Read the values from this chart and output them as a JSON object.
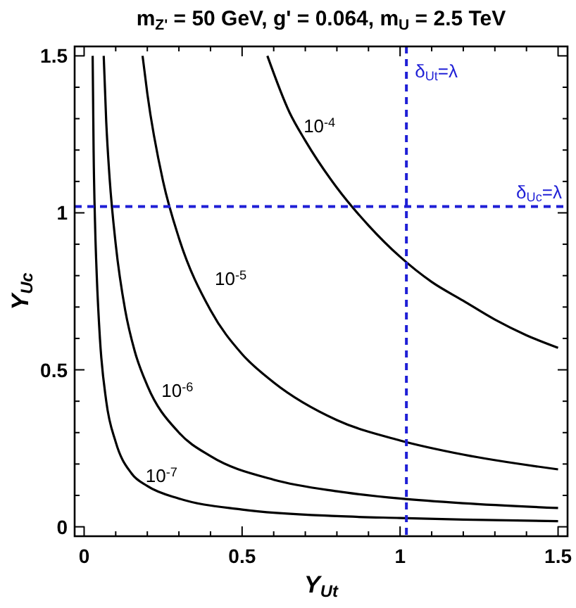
{
  "chart_data": {
    "type": "line",
    "title": "m$_{Z'}$ = 50 GeV, g' = 0.064,  m$_{U}$ = 2.5 TeV",
    "xlabel": "Y$_{Ut}$",
    "ylabel": "Y$_{Uc}$",
    "xlim": [
      -0.03,
      1.53
    ],
    "ylim": [
      -0.03,
      1.53
    ],
    "xticks": [
      0,
      {
        "value": 0.1,
        "label": null
      },
      {
        "value": 0.2,
        "label": null
      },
      {
        "value": 0.3,
        "label": null
      },
      {
        "value": 0.4,
        "label": null
      },
      0.5,
      {
        "value": 0.6,
        "label": null
      },
      {
        "value": 0.7,
        "label": null
      },
      {
        "value": 0.8,
        "label": null
      },
      {
        "value": 0.9,
        "label": null
      },
      1,
      {
        "value": 1.1,
        "label": null
      },
      {
        "value": 1.2,
        "label": null
      },
      {
        "value": 1.3,
        "label": null
      },
      {
        "value": 1.4,
        "label": null
      },
      1.5
    ],
    "yticks": [
      0,
      {
        "value": 0.1,
        "label": null
      },
      {
        "value": 0.2,
        "label": null
      },
      {
        "value": 0.3,
        "label": null
      },
      {
        "value": 0.4,
        "label": null
      },
      0.5,
      {
        "value": 0.6,
        "label": null
      },
      {
        "value": 0.7,
        "label": null
      },
      {
        "value": 0.8,
        "label": null
      },
      {
        "value": 0.9,
        "label": null
      },
      1,
      {
        "value": 1.1,
        "label": null
      },
      {
        "value": 1.2,
        "label": null
      },
      {
        "value": 1.3,
        "label": null
      },
      {
        "value": 1.4,
        "label": null
      },
      1.5
    ],
    "line_style": "solid",
    "series": [
      {
        "name": "10$^{-4}$",
        "color": "#000000",
        "x": [
          0.58,
          0.65,
          0.7,
          0.8,
          0.9,
          1.0,
          1.1,
          1.2,
          1.3,
          1.4,
          1.5
        ],
        "values": [
          1.5,
          1.32,
          1.23,
          1.08,
          0.96,
          0.86,
          0.78,
          0.72,
          0.66,
          0.61,
          0.57
        ]
      },
      {
        "name": "10$^{-5}$",
        "color": "#000000",
        "x": [
          0.185,
          0.2,
          0.25,
          0.3,
          0.4,
          0.5,
          0.6,
          0.8,
          1.0,
          1.2,
          1.5
        ],
        "values": [
          1.5,
          1.38,
          1.1,
          0.92,
          0.69,
          0.55,
          0.46,
          0.34,
          0.275,
          0.23,
          0.183
        ]
      },
      {
        "name": "10$^{-6}$",
        "color": "#000000",
        "x": [
          0.062,
          0.07,
          0.08,
          0.1,
          0.13,
          0.16,
          0.2,
          0.3,
          0.4,
          0.6,
          0.8,
          1.0,
          1.2,
          1.5
        ],
        "values": [
          1.5,
          1.29,
          1.12,
          0.9,
          0.69,
          0.56,
          0.45,
          0.3,
          0.225,
          0.15,
          0.113,
          0.09,
          0.075,
          0.06
        ]
      },
      {
        "name": "10$^{-7}$",
        "color": "#000000",
        "x": [
          0.027,
          0.03,
          0.035,
          0.04,
          0.05,
          0.07,
          0.1,
          0.15,
          0.2,
          0.3,
          0.5,
          0.8,
          1.0,
          1.2,
          1.5
        ],
        "values": [
          1.5,
          1.2,
          0.95,
          0.8,
          0.6,
          0.4,
          0.27,
          0.17,
          0.13,
          0.09,
          0.055,
          0.034,
          0.028,
          0.023,
          0.018
        ]
      }
    ],
    "ref_lines": [
      {
        "axis": "x",
        "value": 1.02,
        "label": "δ$_{Ut}$=λ",
        "color": "#1f1fd6",
        "line_style": "dashed"
      },
      {
        "axis": "y",
        "value": 1.02,
        "label": "δ$_{Uc}$=λ",
        "color": "#1f1fd6",
        "line_style": "dashed"
      }
    ]
  }
}
